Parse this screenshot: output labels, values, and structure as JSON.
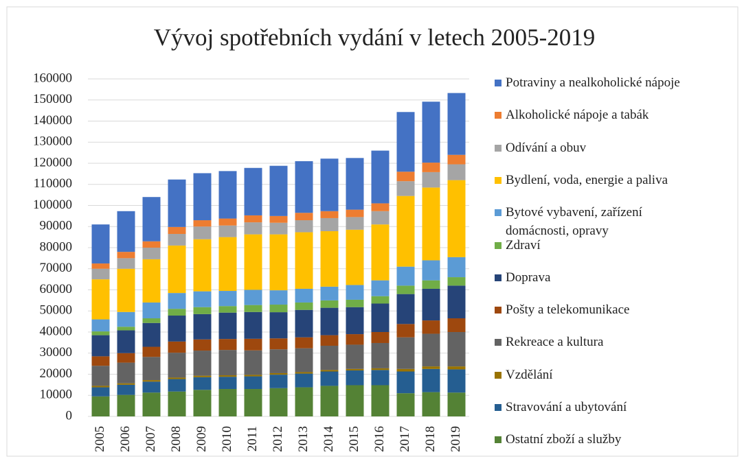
{
  "chart_data": {
    "type": "bar",
    "stacked": true,
    "title": "Vývoj spotřebních vydání v letech 2005-2019",
    "categories": [
      "2005",
      "2006",
      "2007",
      "2008",
      "2009",
      "2010",
      "2011",
      "2012",
      "2013",
      "2014",
      "2015",
      "2016",
      "2017",
      "2018",
      "2019"
    ],
    "series": [
      {
        "name": "Ostatní zboží a služby",
        "color": "#548235",
        "values": [
          9500,
          10200,
          11300,
          11800,
          12600,
          13000,
          13000,
          13400,
          13800,
          14500,
          14800,
          14800,
          11000,
          11500,
          11300
        ]
      },
      {
        "name": "Stravování a ubytování",
        "color": "#255e91",
        "values": [
          4300,
          4800,
          5200,
          5900,
          6000,
          5800,
          6000,
          6400,
          6500,
          6800,
          7000,
          7200,
          10300,
          11000,
          11000
        ]
      },
      {
        "name": "Vzdělání",
        "color": "#997300",
        "values": [
          700,
          700,
          700,
          700,
          700,
          700,
          700,
          700,
          700,
          700,
          700,
          800,
          1200,
          1200,
          1400
        ]
      },
      {
        "name": "Rekreace a kultura",
        "color": "#636363",
        "values": [
          9500,
          9800,
          11000,
          11800,
          11900,
          12000,
          11600,
          11300,
          11300,
          11500,
          11500,
          12000,
          15000,
          15500,
          16300
        ]
      },
      {
        "name": "Pošty a telekomunikace",
        "color": "#9e480e",
        "values": [
          4500,
          4500,
          4800,
          5300,
          5300,
          5200,
          5500,
          5200,
          5200,
          5000,
          5000,
          5200,
          6300,
          6300,
          6500
        ]
      },
      {
        "name": "Doprava",
        "color": "#264478",
        "values": [
          10000,
          10800,
          11300,
          12300,
          12000,
          12500,
          12700,
          12400,
          13000,
          13000,
          12800,
          13500,
          14200,
          15000,
          15500
        ]
      },
      {
        "name": "Zdraví",
        "color": "#70ad47",
        "values": [
          1800,
          1700,
          2200,
          3200,
          3300,
          3100,
          3300,
          3600,
          3500,
          3500,
          3500,
          3500,
          4000,
          4000,
          4000
        ]
      },
      {
        "name": "Bytové vybavení, zařízení domácnosti, opravy",
        "color": "#5b9bd5",
        "values": [
          5700,
          7000,
          7500,
          7500,
          7500,
          7200,
          7200,
          6800,
          6500,
          6500,
          7000,
          7500,
          9000,
          9500,
          9500
        ]
      },
      {
        "name": "Bydlení, voda, energie a paliva",
        "color": "#ffc000",
        "values": [
          19000,
          20500,
          20500,
          22500,
          24700,
          25500,
          26300,
          26500,
          26800,
          26300,
          26200,
          26500,
          33500,
          34500,
          36500
        ]
      },
      {
        "name": "Odívání a obuv",
        "color": "#a5a5a5",
        "values": [
          5000,
          5000,
          5500,
          5500,
          6000,
          5500,
          5700,
          5500,
          5700,
          6200,
          6000,
          6300,
          7000,
          7300,
          7500
        ]
      },
      {
        "name": "Alkoholické nápoje a tabák",
        "color": "#ed7d31",
        "values": [
          2500,
          3000,
          3000,
          3300,
          3000,
          3300,
          3300,
          3200,
          3500,
          3300,
          3500,
          3700,
          4500,
          4500,
          4500
        ]
      },
      {
        "name": "Potraviny a nealkoholické nápoje",
        "color": "#4472c4",
        "values": [
          18500,
          19300,
          21000,
          22500,
          22300,
          22500,
          22500,
          23800,
          24500,
          24900,
          24500,
          25000,
          28300,
          28900,
          29300
        ]
      }
    ],
    "ylim": [
      0,
      160000
    ],
    "yticks": [
      0,
      10000,
      20000,
      30000,
      40000,
      50000,
      60000,
      70000,
      80000,
      90000,
      100000,
      110000,
      120000,
      130000,
      140000,
      150000,
      160000
    ],
    "grid": true
  }
}
